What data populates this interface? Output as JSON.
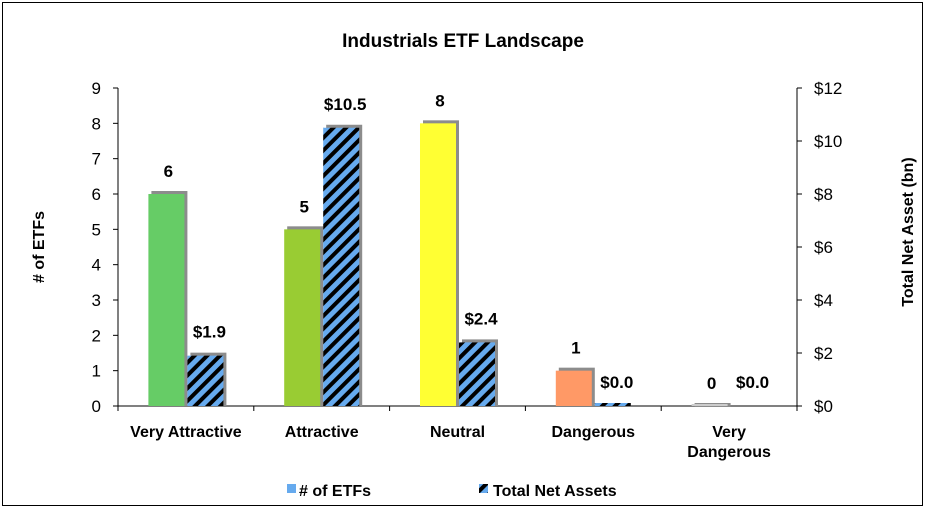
{
  "chart_data": {
    "type": "bar",
    "title": "Industrials ETF Landscape",
    "categories": [
      "Very Attractive",
      "Attractive",
      "Neutral",
      "Dangerous",
      "Very Dangerous"
    ],
    "series": [
      {
        "name": "# of ETFs",
        "axis": "left",
        "values": [
          6,
          5,
          8,
          1,
          0
        ],
        "labels": [
          "6",
          "5",
          "8",
          "1",
          "0"
        ],
        "colors": [
          "#66cc66",
          "#99cc33",
          "#ffff33",
          "#ff9966",
          "#cccccc"
        ],
        "legend_color": "#66aaee"
      },
      {
        "name": "Total Net Assets",
        "axis": "right",
        "values": [
          1.9,
          10.5,
          2.4,
          0.0,
          0.0
        ],
        "labels": [
          "$1.9",
          "$10.5",
          "$2.4",
          "$0.0",
          "$0.0"
        ],
        "fill": "#66aaee",
        "hatch": "#000000"
      }
    ],
    "ylabel": "# of ETFs",
    "ylim": [
      0,
      9
    ],
    "yticks": [
      "0",
      "1",
      "2",
      "3",
      "4",
      "5",
      "6",
      "7",
      "8",
      "9"
    ],
    "y2label": "Total Net Asset (bn)",
    "y2lim": [
      0,
      12
    ],
    "y2ticks": [
      "$0",
      "$2",
      "$4",
      "$6",
      "$8",
      "$10",
      "$12"
    ],
    "grid": false,
    "legend_position": "bottom"
  }
}
